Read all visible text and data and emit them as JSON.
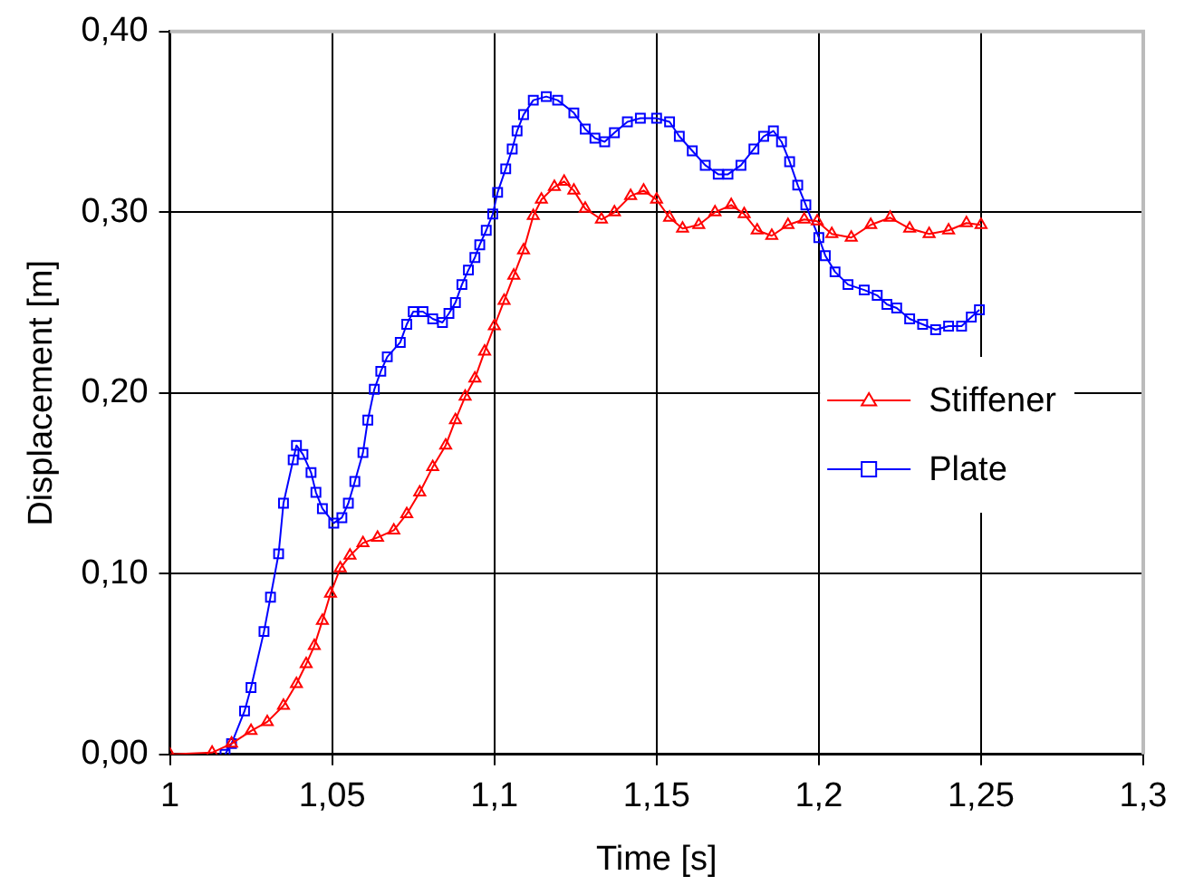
{
  "chart_data": {
    "type": "line",
    "xlabel": "Time [s]",
    "ylabel": "Displacement [m]",
    "xlim": [
      1,
      1.3
    ],
    "xticks": [
      1,
      {
        "value": 1.05,
        "label": "1,05"
      },
      {
        "value": 1.1,
        "label": "1,1"
      },
      {
        "value": 1.15,
        "label": "1,15"
      },
      {
        "value": 1.2,
        "label": "1,2"
      },
      {
        "value": 1.25,
        "label": "1,25"
      },
      {
        "value": 1.3,
        "label": "1,3"
      }
    ],
    "ylim": [
      0,
      0.4
    ],
    "yticks": [
      {
        "value": 0,
        "label": "0,00"
      },
      {
        "value": 0.1,
        "label": "0,10"
      },
      {
        "value": 0.2,
        "label": "0,20"
      },
      {
        "value": 0.3,
        "label": "0,30"
      },
      {
        "value": 0.4,
        "label": "0,40"
      }
    ],
    "grid": true,
    "legend": "center right",
    "line_style": "solid",
    "series": [
      {
        "name": "Stiffener",
        "color": "#ff0000",
        "marker": "triangle",
        "x": [
          1.0,
          1.013,
          1.019,
          1.025,
          1.03,
          1.035,
          1.039,
          1.042,
          1.0445,
          1.047,
          1.0495,
          1.0525,
          1.0555,
          1.0595,
          1.064,
          1.069,
          1.073,
          1.077,
          1.081,
          1.085,
          1.088,
          1.091,
          1.094,
          1.097,
          1.1,
          1.103,
          1.106,
          1.109,
          1.112,
          1.1145,
          1.1185,
          1.1215,
          1.1245,
          1.128,
          1.133,
          1.137,
          1.142,
          1.146,
          1.15,
          1.154,
          1.158,
          1.163,
          1.168,
          1.173,
          1.177,
          1.181,
          1.1855,
          1.1905,
          1.1955,
          1.1995,
          1.204,
          1.21,
          1.216,
          1.222,
          1.228,
          1.234,
          1.24,
          1.2455,
          1.25
        ],
        "values": [
          0,
          0.001,
          0.006,
          0.013,
          0.018,
          0.027,
          0.039,
          0.05,
          0.06,
          0.074,
          0.089,
          0.103,
          0.11,
          0.117,
          0.12,
          0.124,
          0.133,
          0.145,
          0.159,
          0.171,
          0.185,
          0.198,
          0.208,
          0.223,
          0.237,
          0.251,
          0.265,
          0.279,
          0.298,
          0.307,
          0.314,
          0.317,
          0.312,
          0.302,
          0.296,
          0.3,
          0.309,
          0.312,
          0.307,
          0.297,
          0.291,
          0.293,
          0.3,
          0.304,
          0.299,
          0.29,
          0.287,
          0.293,
          0.296,
          0.295,
          0.288,
          0.286,
          0.293,
          0.297,
          0.291,
          0.288,
          0.29,
          0.294,
          0.293
        ]
      },
      {
        "name": "Plate",
        "color": "#0000ff",
        "marker": "square",
        "x": [
          1.017,
          1.019,
          1.023,
          1.025,
          1.029,
          1.031,
          1.0335,
          1.035,
          1.038,
          1.039,
          1.041,
          1.0435,
          1.045,
          1.047,
          1.0505,
          1.053,
          1.055,
          1.057,
          1.0595,
          1.061,
          1.063,
          1.065,
          1.067,
          1.071,
          1.073,
          1.075,
          1.078,
          1.081,
          1.084,
          1.086,
          1.088,
          1.09,
          1.092,
          1.094,
          1.0955,
          1.0975,
          1.0995,
          1.101,
          1.1035,
          1.1055,
          1.107,
          1.109,
          1.112,
          1.116,
          1.1195,
          1.1245,
          1.128,
          1.131,
          1.134,
          1.137,
          1.141,
          1.145,
          1.15,
          1.154,
          1.157,
          1.161,
          1.165,
          1.169,
          1.172,
          1.176,
          1.18,
          1.183,
          1.186,
          1.1885,
          1.191,
          1.1935,
          1.196,
          1.2,
          1.202,
          1.205,
          1.209,
          1.214,
          1.218,
          1.221,
          1.224,
          1.228,
          1.232,
          1.236,
          1.24,
          1.244,
          1.247,
          1.2495
        ],
        "values": [
          0,
          0.006,
          0.024,
          0.037,
          0.068,
          0.087,
          0.111,
          0.139,
          0.163,
          0.171,
          0.166,
          0.156,
          0.145,
          0.136,
          0.128,
          0.131,
          0.139,
          0.151,
          0.167,
          0.185,
          0.202,
          0.212,
          0.22,
          0.228,
          0.238,
          0.245,
          0.245,
          0.241,
          0.239,
          0.244,
          0.25,
          0.26,
          0.268,
          0.275,
          0.282,
          0.29,
          0.299,
          0.311,
          0.324,
          0.335,
          0.345,
          0.354,
          0.362,
          0.364,
          0.362,
          0.355,
          0.346,
          0.341,
          0.339,
          0.344,
          0.35,
          0.352,
          0.352,
          0.35,
          0.342,
          0.334,
          0.326,
          0.321,
          0.321,
          0.326,
          0.335,
          0.342,
          0.345,
          0.339,
          0.328,
          0.315,
          0.304,
          0.286,
          0.276,
          0.267,
          0.26,
          0.257,
          0.254,
          0.249,
          0.247,
          0.241,
          0.238,
          0.235,
          0.237,
          0.237,
          0.242,
          0.246
        ]
      }
    ]
  }
}
